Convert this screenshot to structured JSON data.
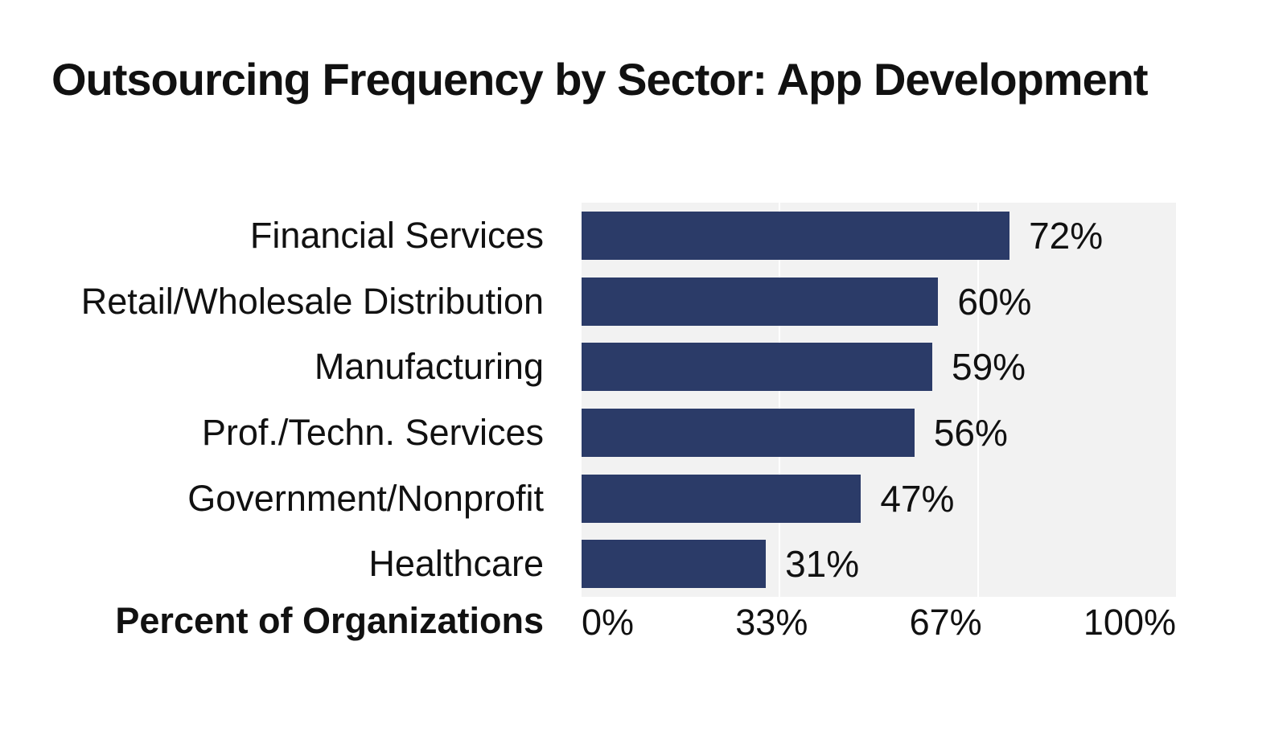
{
  "chart_data": {
    "type": "bar",
    "orientation": "horizontal",
    "title": "Outsourcing Frequency by Sector: App Development",
    "categories": [
      "Financial Services",
      "Retail/Wholesale Distribution",
      "Manufacturing",
      "Prof./Techn. Services",
      "Government/Nonprofit",
      "Healthcare"
    ],
    "values": [
      72,
      60,
      59,
      56,
      47,
      31
    ],
    "value_labels": [
      "72%",
      "60%",
      "59%",
      "56%",
      "47%",
      "31%"
    ],
    "xlabel": "Percent of Organizations",
    "x_ticks": [
      "0%",
      "33%",
      "67%",
      "100%"
    ],
    "x_tick_positions": [
      0,
      33.33,
      66.67,
      100
    ],
    "xlim": [
      0,
      100
    ],
    "grid": {
      "vertical_gridlines_percent": [
        33.33,
        66.67
      ]
    },
    "legend": "none",
    "colors": {
      "bar": "#2B3B68",
      "plot_background": "#F2F2F2",
      "gridline": "#FFFFFF",
      "text": "#111111",
      "page_background": "#FFFFFF"
    }
  }
}
